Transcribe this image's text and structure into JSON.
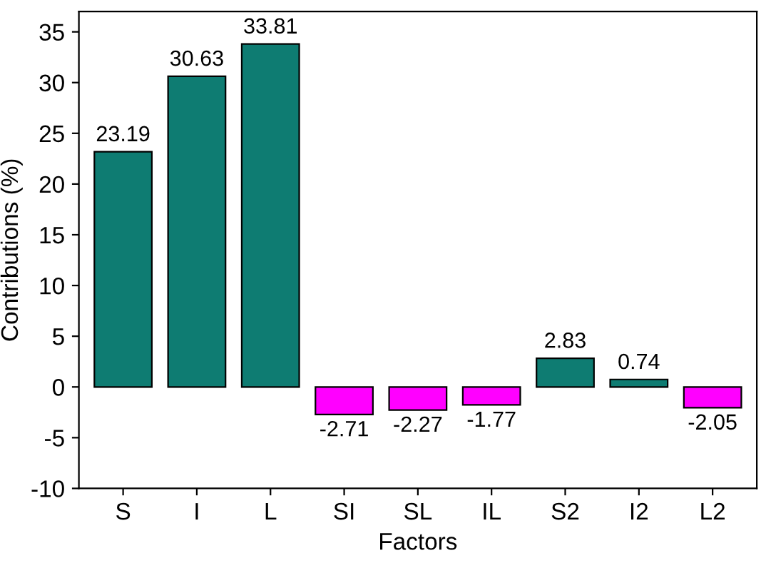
{
  "chart_data": {
    "type": "bar",
    "xlabel": "Factors",
    "ylabel": "Contributions (%)",
    "categories": [
      "S",
      "I",
      "L",
      "SI",
      "SL",
      "IL",
      "S2",
      "I2",
      "L2"
    ],
    "values": [
      23.19,
      30.63,
      33.81,
      -2.71,
      -2.27,
      -1.77,
      2.83,
      0.74,
      -2.05
    ],
    "colors": [
      "#0e7c72",
      "#0e7c72",
      "#0e7c72",
      "#ff00ff",
      "#ff00ff",
      "#ff00ff",
      "#0e7c72",
      "#0e7c72",
      "#ff00ff"
    ],
    "ylim": [
      -10,
      37
    ],
    "yticks": [
      -10,
      -5,
      0,
      5,
      10,
      15,
      20,
      25,
      30,
      35
    ],
    "data_labels": true,
    "grid": false,
    "legend": false
  }
}
